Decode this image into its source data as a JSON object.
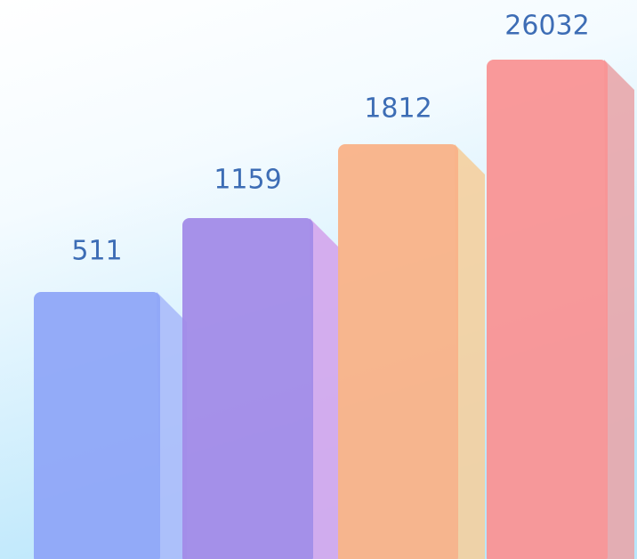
{
  "items": [
    {
      "label": "511",
      "color": "#8fa6f8",
      "side_color": "#aabbfa"
    },
    {
      "label": "1159",
      "color": "#a28be8",
      "side_color": "#d3a5ec"
    },
    {
      "label": "1812",
      "color": "#f9b288",
      "side_color": "#f4cf9e"
    },
    {
      "label": "26032",
      "color": "#f99495",
      "side_color": "#e8a6ab"
    }
  ]
}
